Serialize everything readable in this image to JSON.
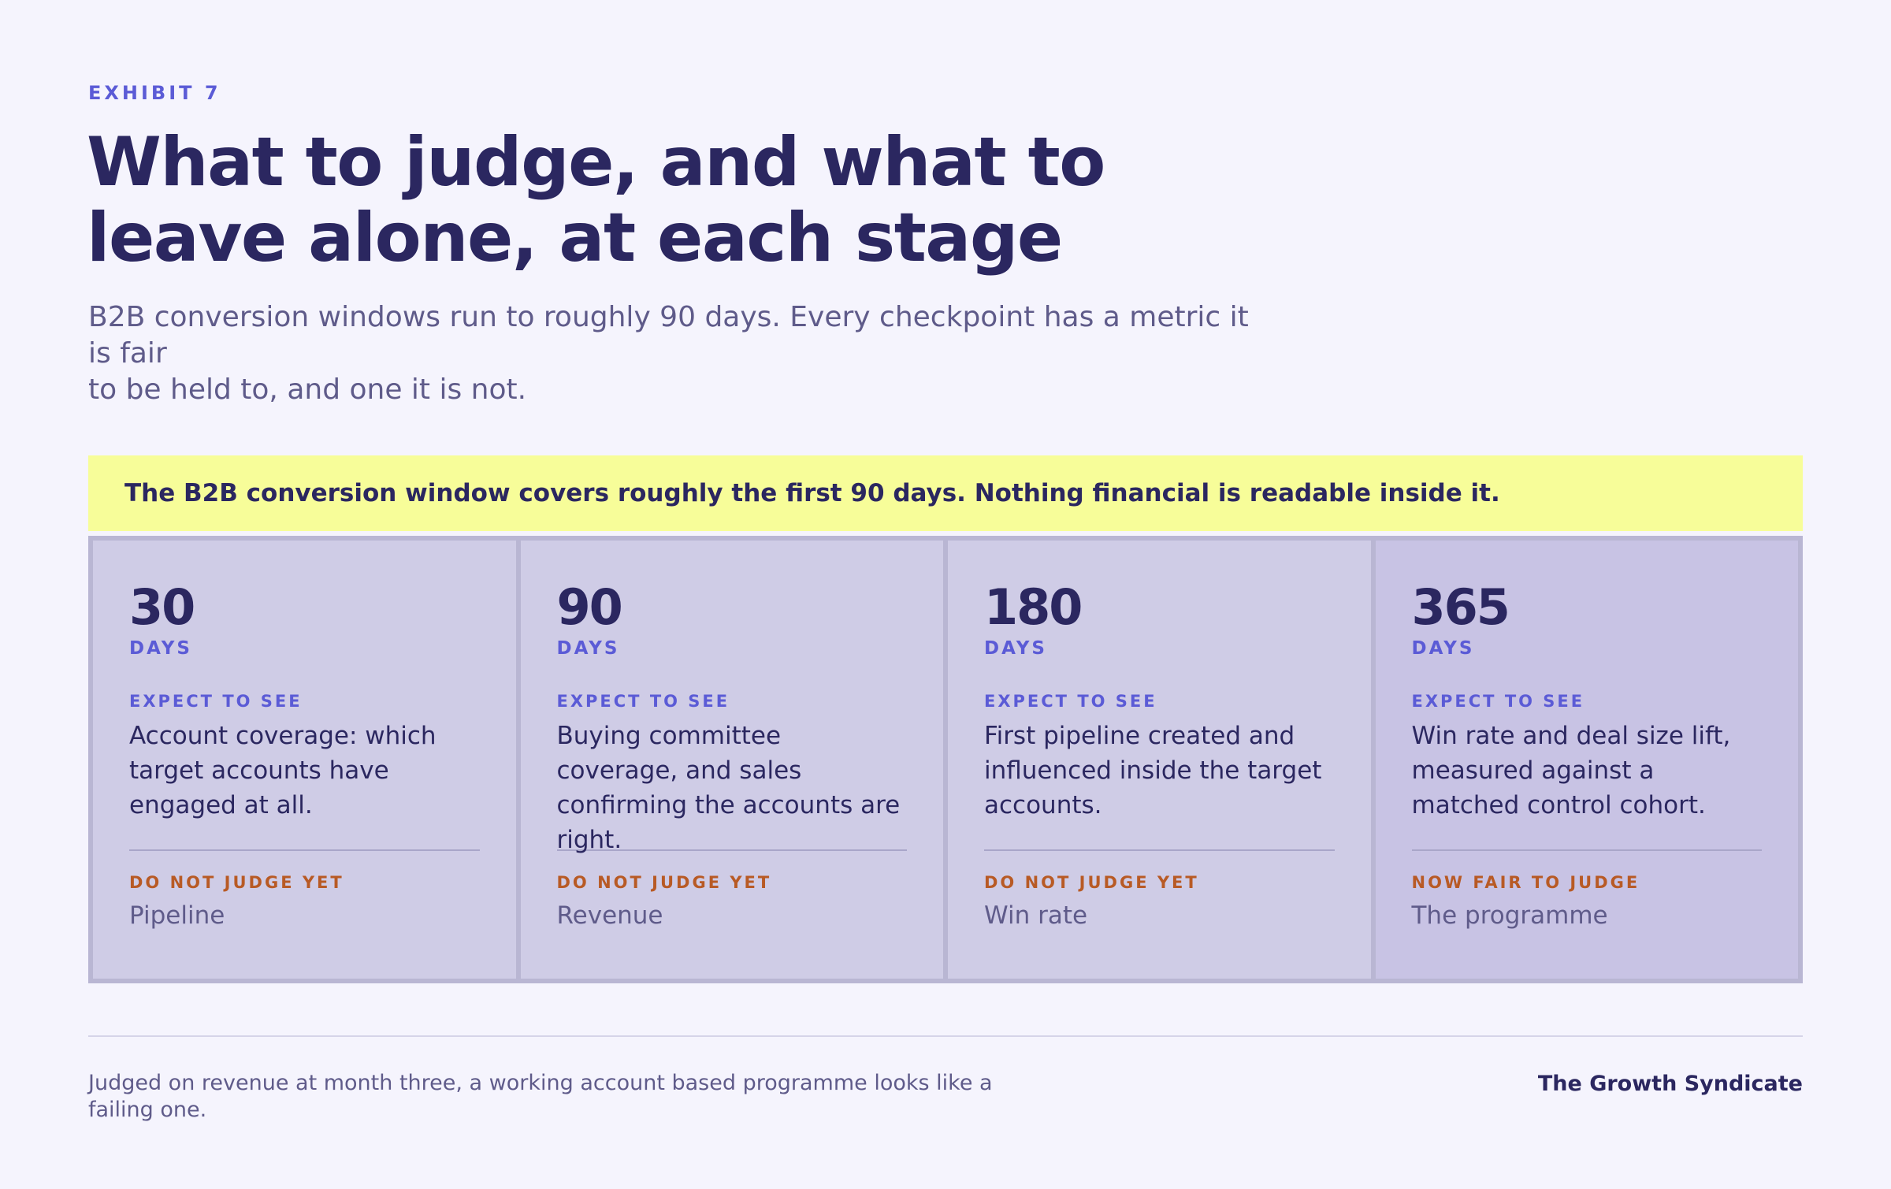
{
  "header": {
    "eyebrow": "EXHIBIT 7",
    "title_line1": "What to judge, and what to",
    "title_line2": "leave alone, at each stage",
    "subtitle_line1": "B2B conversion windows run to roughly 90 days. Every checkpoint has a metric it is fair",
    "subtitle_line2": "to be held to, and one it is not."
  },
  "banner": {
    "text": "The B2B conversion window covers roughly the first 90 days. Nothing financial is readable inside it.",
    "color": "#f7fd99"
  },
  "stages": [
    {
      "number": "30",
      "unit": "DAYS",
      "expect_label": "EXPECT TO SEE",
      "expect_text": "Account coverage: which target accounts have engaged at all.",
      "judge_label": "DO NOT JUDGE YET",
      "judge_text": "Pipeline"
    },
    {
      "number": "90",
      "unit": "DAYS",
      "expect_label": "EXPECT TO SEE",
      "expect_text": "Buying committee coverage, and sales confirming the accounts are right.",
      "judge_label": "DO NOT JUDGE YET",
      "judge_text": "Revenue"
    },
    {
      "number": "180",
      "unit": "DAYS",
      "expect_label": "EXPECT TO SEE",
      "expect_text": "First pipeline created and influenced inside the target accounts.",
      "judge_label": "DO NOT JUDGE YET",
      "judge_text": "Win rate"
    },
    {
      "number": "365",
      "unit": "DAYS",
      "expect_label": "EXPECT TO SEE",
      "expect_text": "Win rate and deal size lift, measured against a matched control cohort.",
      "judge_label": "NOW FAIR TO JUDGE",
      "judge_text": "The programme"
    }
  ],
  "footer": {
    "note_line1": "Judged on revenue at month three, a working account based programme looks like a",
    "note_line2": "failing one.",
    "brand": "The Growth Syndicate"
  },
  "colors": {
    "background": "#f5f4fd",
    "ink": "#2b2760",
    "accent": "#5b5bd6",
    "warning": "#b85a25",
    "stage_bg": "#cfcce6",
    "stage_final_bg": "#c8c3e4"
  }
}
